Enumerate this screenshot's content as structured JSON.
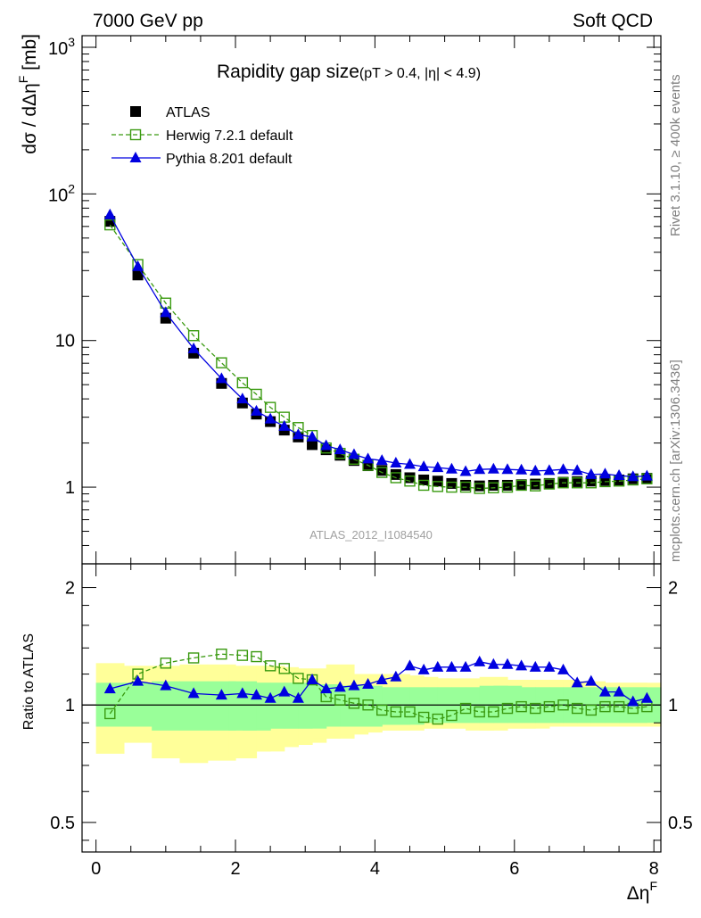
{
  "header": {
    "left": "7000 GeV pp",
    "right": "Soft QCD"
  },
  "side_labels": {
    "rivet": "Rivet 3.1.10, ≥ 400k events",
    "mcplots": "mcplots.cern.ch [arXiv:1306.3436]"
  },
  "watermark": "ATLAS_2012_I1084540",
  "chart_data": [
    {
      "type": "scatter",
      "panel": "main",
      "title": "Rapidity gap size",
      "subtitle": "(pT > 0.4, |η| < 4.9)",
      "ylabel": "dσ / dΔη^F [mb]",
      "yscale": "log",
      "ylim": [
        0.3,
        1200
      ],
      "xlim": [
        -0.2,
        8.1
      ],
      "yticks": [
        "10^3",
        "10^2",
        "10",
        "1"
      ],
      "grid": false,
      "legend_position": "top-left",
      "x": [
        0.2,
        0.6,
        1.0,
        1.4,
        1.8,
        2.1,
        2.3,
        2.5,
        2.7,
        2.9,
        3.1,
        3.3,
        3.5,
        3.7,
        3.9,
        4.1,
        4.3,
        4.5,
        4.7,
        4.9,
        5.1,
        5.3,
        5.5,
        5.7,
        5.9,
        6.1,
        6.3,
        6.5,
        6.7,
        6.9,
        7.1,
        7.3,
        7.5,
        7.7,
        7.9
      ],
      "series": [
        {
          "name": "ATLAS",
          "marker": "filled-square",
          "color": "#000000",
          "values": [
            65,
            28,
            14.2,
            8.2,
            5.1,
            3.75,
            3.15,
            2.8,
            2.45,
            2.2,
            1.95,
            1.8,
            1.65,
            1.52,
            1.4,
            1.3,
            1.22,
            1.16,
            1.12,
            1.1,
            1.06,
            1.03,
            1.02,
            1.03,
            1.03,
            1.04,
            1.05,
            1.06,
            1.08,
            1.09,
            1.1,
            1.11,
            1.12,
            1.14,
            1.15
          ]
        },
        {
          "name": "Herwig 7.2.1 default",
          "marker": "open-square",
          "line": "dashed",
          "color": "#3a9a10",
          "values": [
            61.5,
            33,
            18,
            10.8,
            7.05,
            5.15,
            4.3,
            3.5,
            3.0,
            2.55,
            2.25,
            1.85,
            1.7,
            1.55,
            1.41,
            1.26,
            1.16,
            1.1,
            1.03,
            1.01,
            1.0,
            1.0,
            0.98,
            0.99,
            1.0,
            1.03,
            1.02,
            1.05,
            1.07,
            1.07,
            1.07,
            1.09,
            1.1,
            1.12,
            1.14
          ]
        },
        {
          "name": "Pythia 8.201 default",
          "marker": "filled-triangle",
          "line": "solid",
          "color": "#0000e0",
          "values": [
            72,
            32,
            15.5,
            8.8,
            5.5,
            4.0,
            3.3,
            2.92,
            2.6,
            2.28,
            2.2,
            1.92,
            1.8,
            1.67,
            1.56,
            1.52,
            1.46,
            1.43,
            1.38,
            1.36,
            1.33,
            1.28,
            1.32,
            1.33,
            1.32,
            1.31,
            1.29,
            1.3,
            1.32,
            1.3,
            1.22,
            1.23,
            1.2,
            1.18,
            1.19
          ]
        }
      ]
    },
    {
      "type": "line",
      "panel": "ratio",
      "ylabel": "Ratio to ATLAS",
      "xlabel": "Δη^F",
      "yscale": "log",
      "ylim": [
        0.42,
        2.3
      ],
      "xlim": [
        -0.2,
        8.1
      ],
      "xticks": [
        0,
        2,
        4,
        6,
        8
      ],
      "yticks": [
        0.5,
        1,
        2
      ],
      "reference": 1,
      "x": [
        0.2,
        0.6,
        1.0,
        1.4,
        1.8,
        2.1,
        2.3,
        2.5,
        2.7,
        2.9,
        3.1,
        3.3,
        3.5,
        3.7,
        3.9,
        4.1,
        4.3,
        4.5,
        4.7,
        4.9,
        5.1,
        5.3,
        5.5,
        5.7,
        5.9,
        6.1,
        6.3,
        6.5,
        6.7,
        6.9,
        7.1,
        7.3,
        7.5,
        7.7,
        7.9
      ],
      "bands": {
        "inner": {
          "color": "#99ff99",
          "low": [
            0.88,
            0.88,
            0.86,
            0.86,
            0.86,
            0.86,
            0.86,
            0.87,
            0.87,
            0.87,
            0.87,
            0.88,
            0.88,
            0.88,
            0.88,
            0.89,
            0.89,
            0.89,
            0.9,
            0.9,
            0.9,
            0.9,
            0.9,
            0.9,
            0.9,
            0.9,
            0.9,
            0.9,
            0.9,
            0.9,
            0.9,
            0.9,
            0.9,
            0.9,
            0.9
          ],
          "high": [
            1.14,
            1.14,
            1.15,
            1.15,
            1.15,
            1.15,
            1.14,
            1.14,
            1.14,
            1.14,
            1.13,
            1.13,
            1.12,
            1.12,
            1.12,
            1.11,
            1.11,
            1.11,
            1.11,
            1.11,
            1.11,
            1.11,
            1.11,
            1.12,
            1.12,
            1.11,
            1.11,
            1.11,
            1.11,
            1.11,
            1.11,
            1.11,
            1.11,
            1.11,
            1.11
          ]
        },
        "outer": {
          "color": "#ffff99",
          "low": [
            0.75,
            0.8,
            0.73,
            0.71,
            0.72,
            0.73,
            0.76,
            0.76,
            0.78,
            0.79,
            0.8,
            0.82,
            0.82,
            0.84,
            0.85,
            0.86,
            0.86,
            0.86,
            0.87,
            0.87,
            0.87,
            0.87,
            0.86,
            0.86,
            0.87,
            0.87,
            0.87,
            0.88,
            0.88,
            0.88,
            0.88,
            0.88,
            0.88,
            0.88,
            0.88
          ],
          "high": [
            1.28,
            1.26,
            1.26,
            1.27,
            1.27,
            1.26,
            1.26,
            1.26,
            1.25,
            1.24,
            1.24,
            1.24,
            1.27,
            1.2,
            1.2,
            1.2,
            1.2,
            1.19,
            1.18,
            1.17,
            1.17,
            1.16,
            1.17,
            1.18,
            1.16,
            1.16,
            1.16,
            1.16,
            1.16,
            1.15,
            1.15,
            1.14,
            1.14,
            1.14,
            1.14
          ]
        }
      },
      "series": [
        {
          "name": "Herwig 7.2.1 default",
          "marker": "open-square",
          "line": "dashed",
          "color": "#3a9a10",
          "values": [
            0.95,
            1.2,
            1.28,
            1.32,
            1.35,
            1.34,
            1.33,
            1.26,
            1.24,
            1.17,
            1.16,
            1.05,
            1.03,
            1.01,
            1.0,
            0.97,
            0.96,
            0.96,
            0.93,
            0.92,
            0.94,
            0.98,
            0.96,
            0.96,
            0.98,
            0.99,
            0.98,
            0.99,
            1.0,
            0.98,
            0.97,
            0.99,
            0.99,
            0.98,
            0.99
          ]
        },
        {
          "name": "Pythia 8.201 default",
          "marker": "filled-triangle",
          "line": "solid",
          "color": "#0000e0",
          "values": [
            1.1,
            1.15,
            1.12,
            1.07,
            1.06,
            1.07,
            1.06,
            1.04,
            1.08,
            1.04,
            1.16,
            1.1,
            1.11,
            1.12,
            1.13,
            1.16,
            1.18,
            1.26,
            1.23,
            1.25,
            1.25,
            1.25,
            1.29,
            1.27,
            1.27,
            1.26,
            1.25,
            1.25,
            1.23,
            1.14,
            1.15,
            1.08,
            1.08,
            1.02,
            1.04
          ]
        }
      ]
    }
  ]
}
